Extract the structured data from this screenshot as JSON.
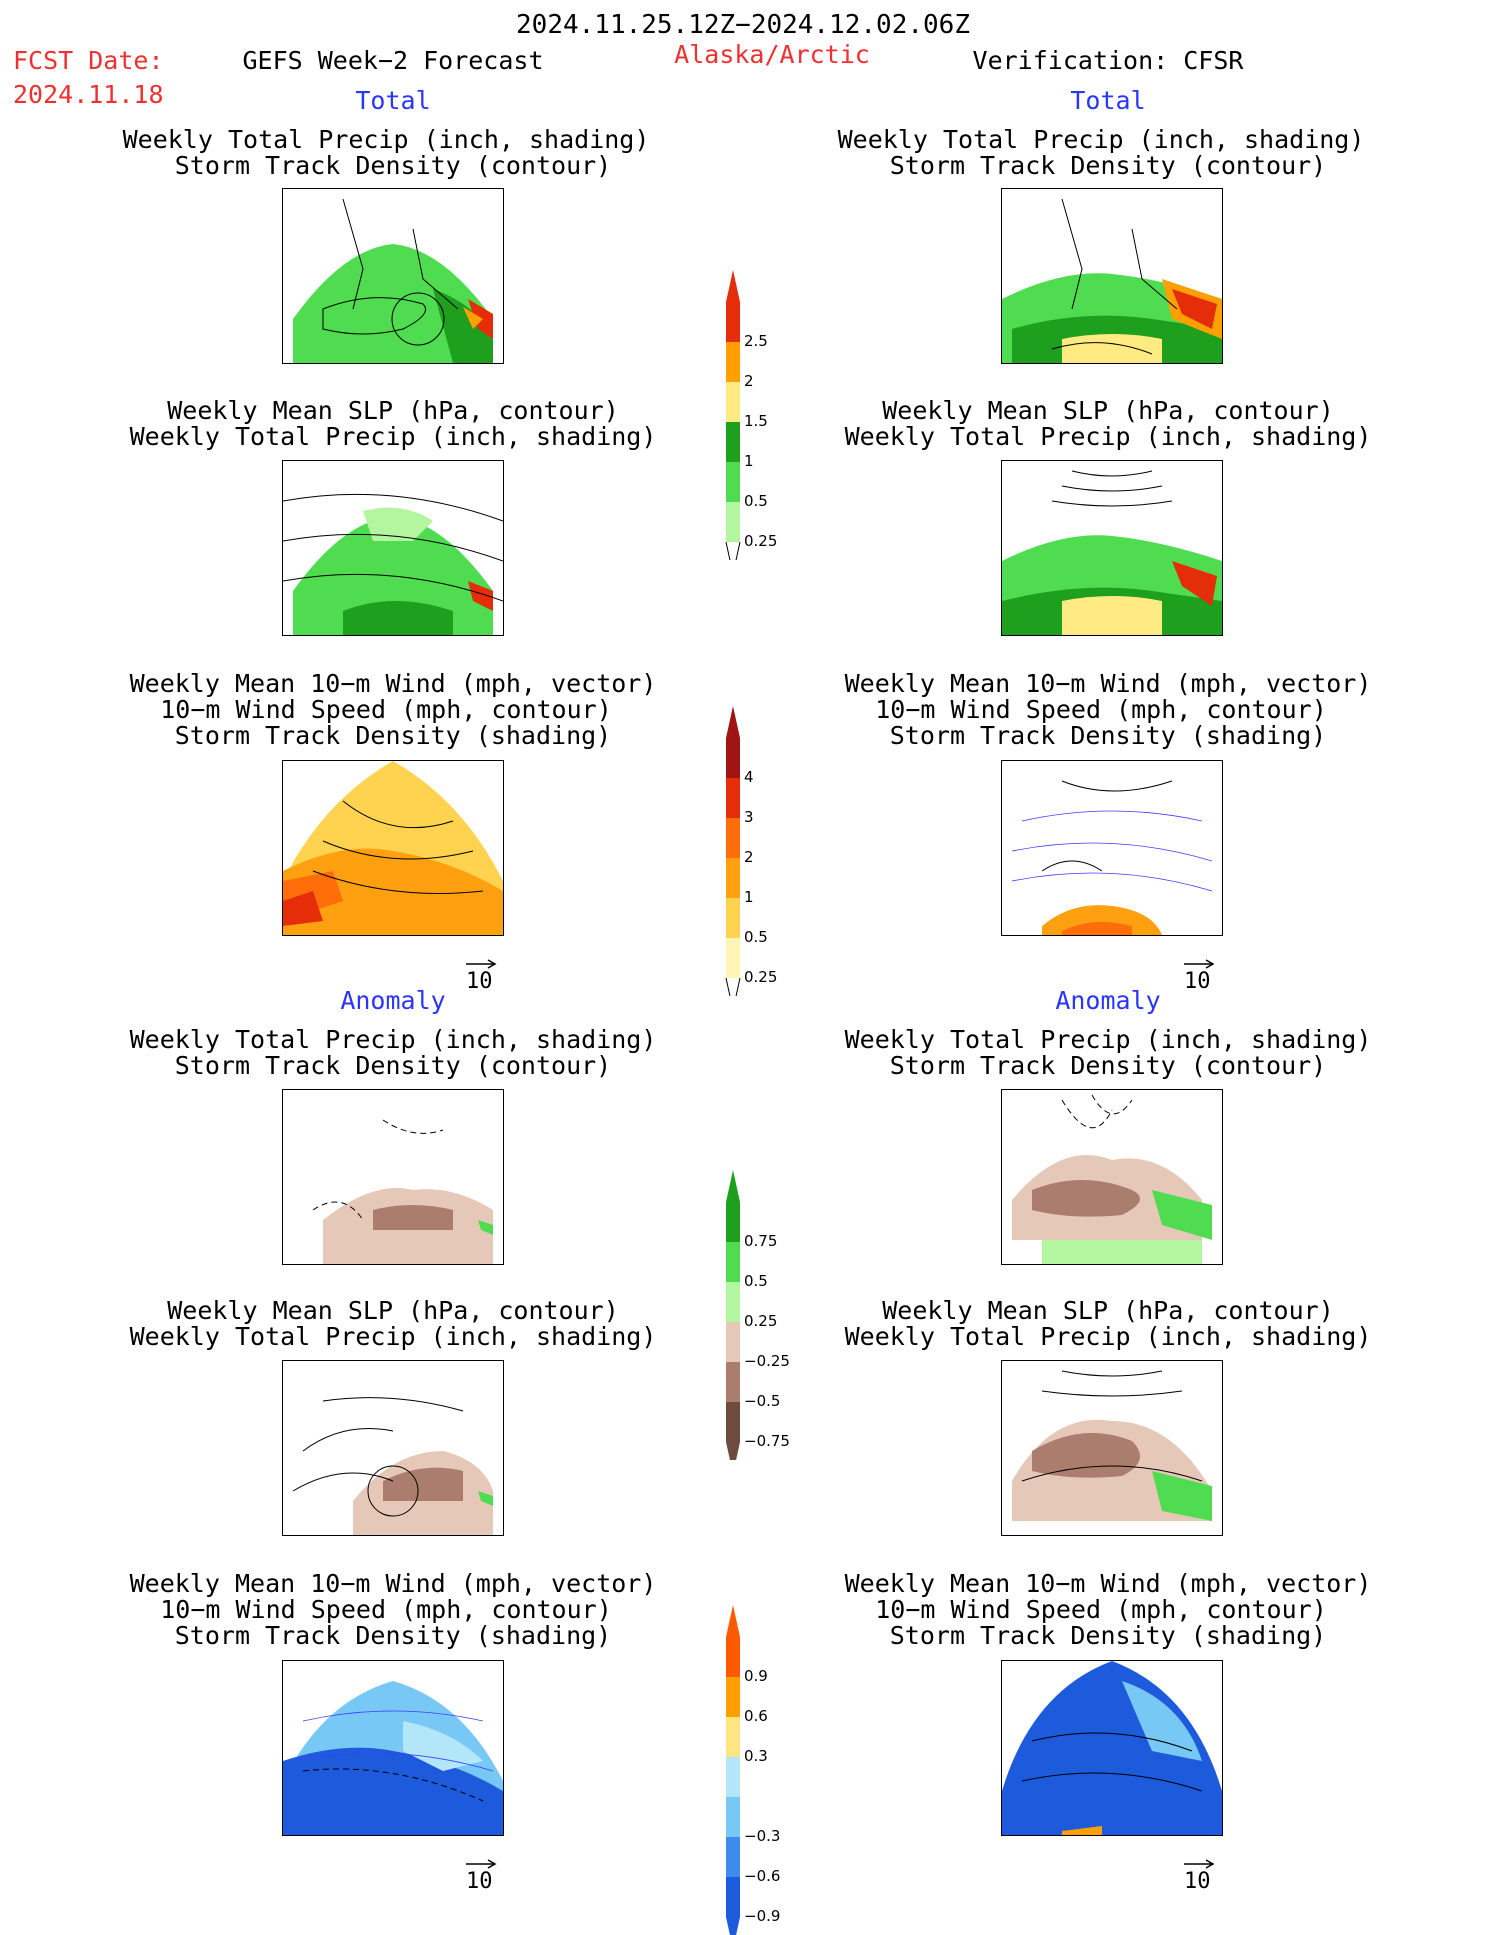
{
  "header": {
    "valid_period": "2024.11.25.12Z−2024.12.02.06Z",
    "fcst_date_label": "FCST Date:",
    "fcst_date_value": "2024.11.18",
    "forecast_label": "GEFS Week−2 Forecast",
    "region": "Alaska/Arctic",
    "verification": "Verification: CFSR"
  },
  "sections": {
    "total": "Total",
    "anomaly": "Anomaly"
  },
  "titles": {
    "precip_track_1": "Weekly Total Precip (inch, shading)",
    "precip_track_2": "Storm Track Density (contour)",
    "slp_1": "Weekly Mean SLP (hPa, contour)",
    "slp_2": "Weekly Total Precip (inch, shading)",
    "wind_1": "Weekly Mean 10−m Wind (mph, vector)",
    "wind_2": "10−m Wind Speed (mph, contour)",
    "wind_3": "Storm Track Density (shading)"
  },
  "vector_key": "10",
  "colors": {
    "red": "#f03030",
    "blue": "#2a35ff"
  },
  "chart_data": [
    {
      "type": "heatmap",
      "name": "Total precip colorbar",
      "levels": [
        "0.25",
        "0.5",
        "1",
        "1.5",
        "2",
        "2.5"
      ],
      "colors": [
        "#b4f5a0",
        "#50dc50",
        "#1ea01e",
        "#ffeb82",
        "#ffa000",
        "#e62d0a"
      ]
    },
    {
      "type": "heatmap",
      "name": "Total storm track density colorbar",
      "levels": [
        "0.25",
        "0.5",
        "1",
        "2",
        "3",
        "4"
      ],
      "colors": [
        "#fff5b4",
        "#ffd250",
        "#ffa010",
        "#ff6e0a",
        "#e62d0a",
        "#a01414"
      ]
    },
    {
      "type": "heatmap",
      "name": "Precip anomaly colorbar",
      "levels": [
        "0.75",
        "0.5",
        "0.25",
        "−0.25",
        "−0.5",
        "−0.75"
      ],
      "colors": [
        "#1ea01e",
        "#50dc50",
        "#b4f5a0",
        "#e6c8b9",
        "#aa7d6e",
        "#6e4b3c"
      ]
    },
    {
      "type": "heatmap",
      "name": "Storm track anomaly colorbar",
      "levels": [
        "0.9",
        "0.6",
        "0.3",
        "−0.3",
        "−0.6",
        "−0.9"
      ],
      "colors": [
        "#ff5a00",
        "#ffa000",
        "#ffe682",
        "#b4e6fa",
        "#78c8f5",
        "#3c8cf0",
        "#1e5adc"
      ]
    }
  ]
}
